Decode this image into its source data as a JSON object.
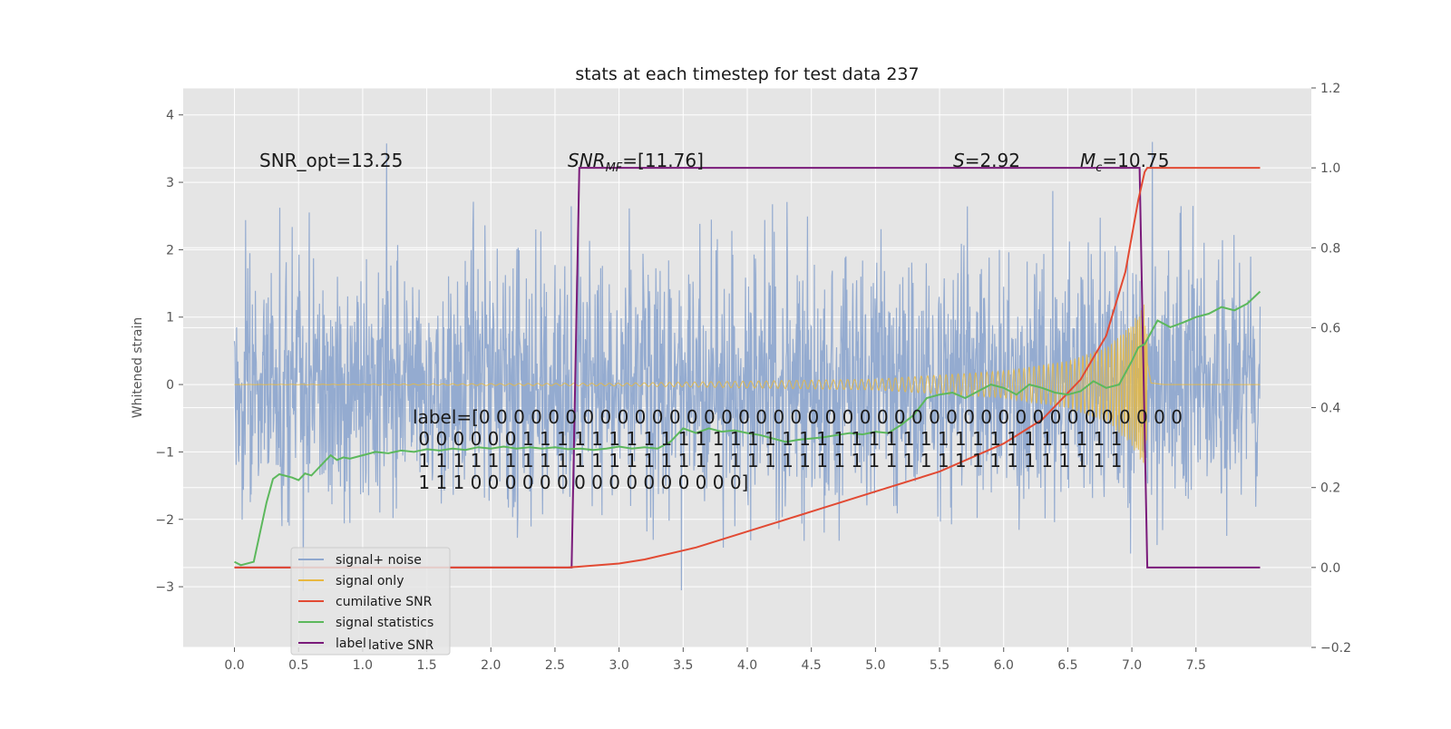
{
  "chart_data": {
    "type": "line",
    "title": "stats at each timestep for test data 237",
    "ylabel": "Whitened strain",
    "xlabel": "",
    "xlim": [
      -0.4,
      8.4
    ],
    "ylim": [
      -3.9,
      4.4
    ],
    "y2lim": [
      -0.2,
      1.2
    ],
    "grid": true,
    "background": "#e5e5e5",
    "x_ticks": [
      "0.0",
      "0.5",
      "1.0",
      "1.5",
      "2.0",
      "2.5",
      "3.0",
      "3.5",
      "4.0",
      "4.5",
      "5.0",
      "5.5",
      "6.0",
      "6.5",
      "7.0",
      "7.5"
    ],
    "y_ticks": [
      "4",
      "3",
      "2",
      "1",
      "0",
      "−1",
      "−2",
      "−3"
    ],
    "y2_ticks": [
      "1.2",
      "1.0",
      "0.8",
      "0.6",
      "0.4",
      "0.2",
      "0.0",
      "−0.2"
    ],
    "annotations": {
      "snr_opt": "SNR_opt=13.25",
      "snr_mf_symbol": "SNR",
      "snr_mf_sub": "MF",
      "snr_mf_value": "=[11.76]",
      "s_symbol": "S",
      "s_value": "=2.92",
      "mc_symbol": "M",
      "mc_sub": "c",
      "mc_value": "=10.75",
      "label_lines": [
        "label=[0 0 0 0 0 0 0 0 0 0 0 0 0 0 0 0 0 0 0 0 0 0 0 0 0 0 0 0 0 0 0 0 0 0 0 0 0 0 0 0 0",
        " 0 0 0 0 0 0 1 1 1 1 1 1 1 1 1 1 1 1 1 1 1 1 1 1 1 1 1 1 1 1 1 1 1 1 1 1 1 1 1 1 1",
        " 1 1 1 1 1 1 1 1 1 1 1 1 1 1 1 1 1 1 1 1 1 1 1 1 1 1 1 1 1 1 1 1 1 1 1 1 1 1 1 1 1",
        " 1 1 1 0 0 0 0 0 0 0 0 0 0 0 0 0 0 0 0]"
      ]
    },
    "series": [
      {
        "name": "signal+ noise",
        "color": "#8fa8cf",
        "axis": "left",
        "amplitude": 1.7,
        "x_range": [
          0.0,
          8.0
        ]
      },
      {
        "name": "signal only",
        "color": "#e8b840",
        "axis": "left",
        "amplitude_envelope": {
          "x": [
            0.0,
            3.0,
            5.0,
            6.0,
            6.5,
            6.8,
            7.0,
            7.05,
            7.1,
            7.15,
            7.25
          ],
          "y": [
            0.0,
            0.02,
            0.08,
            0.2,
            0.35,
            0.55,
            0.9,
            1.1,
            1.2,
            0.05,
            0.0
          ]
        }
      },
      {
        "name": "cumilative SNR",
        "color": "#e24a33",
        "axis": "right",
        "x": [
          0.0,
          2.6,
          3.0,
          3.2,
          3.6,
          4.0,
          4.5,
          5.0,
          5.5,
          6.0,
          6.3,
          6.6,
          6.8,
          6.95,
          7.05,
          7.1,
          7.12,
          7.2,
          7.5,
          8.0
        ],
        "y": [
          0.0,
          0.0,
          0.01,
          0.02,
          0.05,
          0.09,
          0.14,
          0.19,
          0.24,
          0.31,
          0.37,
          0.47,
          0.58,
          0.74,
          0.92,
          0.99,
          1.0,
          1.0,
          1.0,
          1.0
        ]
      },
      {
        "name": "signal statistics",
        "color": "#5cb85c",
        "axis": "left",
        "x": [
          0.0,
          0.05,
          0.15,
          0.25,
          0.3,
          0.35,
          0.45,
          0.5,
          0.55,
          0.6,
          0.65,
          0.75,
          0.8,
          0.85,
          0.9,
          1.0,
          1.1,
          1.2,
          1.3,
          1.4,
          1.5,
          1.6,
          1.7,
          1.8,
          1.9,
          2.0,
          2.1,
          2.2,
          2.3,
          2.4,
          2.5,
          2.6,
          2.7,
          2.8,
          2.9,
          3.0,
          3.1,
          3.2,
          3.3,
          3.4,
          3.5,
          3.6,
          3.7,
          3.8,
          3.9,
          4.0,
          4.1,
          4.2,
          4.3,
          4.4,
          4.5,
          4.6,
          4.7,
          4.8,
          4.9,
          5.0,
          5.1,
          5.2,
          5.3,
          5.4,
          5.5,
          5.6,
          5.7,
          5.8,
          5.9,
          6.0,
          6.1,
          6.2,
          6.3,
          6.4,
          6.5,
          6.6,
          6.7,
          6.8,
          6.9,
          7.0,
          7.05,
          7.1,
          7.2,
          7.3,
          7.4,
          7.5,
          7.6,
          7.7,
          7.8,
          7.9,
          8.0
        ],
        "y": [
          -2.63,
          -2.68,
          -2.63,
          -1.75,
          -1.4,
          -1.33,
          -1.38,
          -1.42,
          -1.32,
          -1.35,
          -1.25,
          -1.05,
          -1.12,
          -1.08,
          -1.1,
          -1.05,
          -1.0,
          -1.02,
          -0.98,
          -1.0,
          -0.96,
          -0.98,
          -0.95,
          -0.97,
          -0.93,
          -0.95,
          -0.92,
          -0.95,
          -0.93,
          -0.95,
          -0.93,
          -0.96,
          -0.95,
          -0.97,
          -0.95,
          -0.92,
          -0.95,
          -0.93,
          -0.95,
          -0.85,
          -0.65,
          -0.72,
          -0.65,
          -0.7,
          -0.68,
          -0.72,
          -0.75,
          -0.8,
          -0.85,
          -0.82,
          -0.8,
          -0.78,
          -0.75,
          -0.72,
          -0.74,
          -0.7,
          -0.72,
          -0.6,
          -0.45,
          -0.2,
          -0.15,
          -0.12,
          -0.2,
          -0.1,
          0.0,
          -0.05,
          -0.15,
          0.0,
          -0.05,
          -0.12,
          -0.15,
          -0.1,
          0.05,
          -0.05,
          0.0,
          0.35,
          0.55,
          0.6,
          0.95,
          0.85,
          0.92,
          1.0,
          1.05,
          1.15,
          1.1,
          1.2,
          1.38
        ]
      },
      {
        "name": "label",
        "color": "#7a1a7a",
        "axis": "right",
        "x": [
          0.0,
          2.63,
          2.69,
          7.06,
          7.12,
          8.0
        ],
        "y": [
          0.0,
          0.0,
          1.0,
          1.0,
          0.0,
          0.0
        ]
      }
    ],
    "legend": {
      "position": "lower-left",
      "items": [
        "signal+ noise",
        "signal only",
        "cumilative SNR",
        "signal statistics",
        "label"
      ],
      "ghost_text": "lative SNR"
    }
  }
}
